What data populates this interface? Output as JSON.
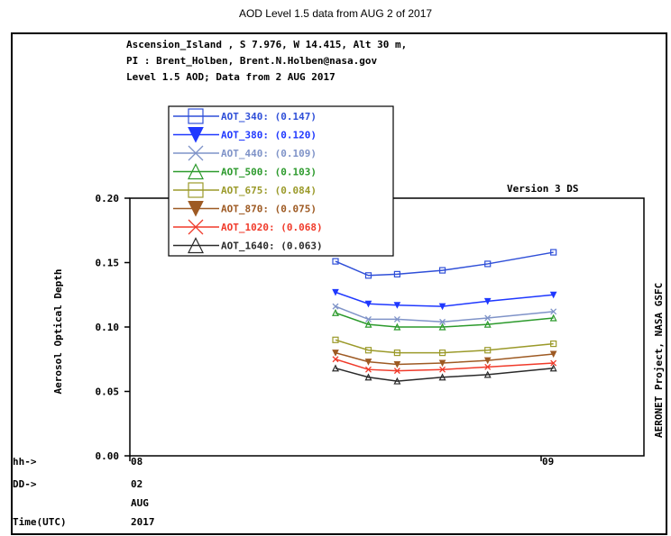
{
  "page_title": "AOD Level 1.5 data from AUG 2 of 2017",
  "header_lines": [
    "Ascension_Island , S  7.976, W  14.415, Alt 30 m,",
    "PI : Brent_Holben, Brent.N.Holben@nasa.gov",
    "Level 1.5 AOD; Data from 2 AUG 2017"
  ],
  "version_text": "Version 3 DS",
  "right_side_text": "AERONET Project, NASA GSFC",
  "time_axis_rows": [
    {
      "label": "hh->",
      "values": [
        "08",
        "09"
      ]
    },
    {
      "label": "DD->",
      "values": [
        "02"
      ]
    },
    {
      "label": "",
      "values": [
        "AUG"
      ]
    },
    {
      "label": "Time(UTC)",
      "values": [
        "2017"
      ]
    }
  ],
  "chart_data": {
    "type": "line",
    "title": "AOD Level 1.5 data from AUG 2 of 2017",
    "ylabel": "Aerosol Optical Depth",
    "xlabel": "Time(UTC)",
    "ylim": [
      0.0,
      0.2
    ],
    "xlim": [
      8.0,
      9.25
    ],
    "yticks": [
      "0.00",
      "0.05",
      "0.10",
      "0.15",
      "0.20"
    ],
    "yticks_values": [
      0.0,
      0.05,
      0.1,
      0.15,
      0.2
    ],
    "xticks": [
      "08",
      "09"
    ],
    "xticks_values": [
      8,
      9
    ],
    "grid": false,
    "legend_position": "top-left",
    "x": [
      8.5,
      8.58,
      8.65,
      8.76,
      8.87,
      9.03
    ],
    "series": [
      {
        "name": "AOT_340",
        "legend_label": "AOT_340: (0.147)",
        "color": "#2f4fd8",
        "marker": "square",
        "values": [
          0.151,
          0.14,
          0.141,
          0.144,
          0.149,
          0.158
        ]
      },
      {
        "name": "AOT_380",
        "legend_label": "AOT_380: (0.120)",
        "color": "#1f38ff",
        "marker": "triangle-down",
        "values": [
          0.127,
          0.118,
          0.117,
          0.116,
          0.12,
          0.125
        ]
      },
      {
        "name": "AOT_440",
        "legend_label": "AOT_440: (0.109)",
        "color": "#7f93c8",
        "marker": "x",
        "values": [
          0.116,
          0.106,
          0.106,
          0.104,
          0.107,
          0.112
        ]
      },
      {
        "name": "AOT_500",
        "legend_label": "AOT_500: (0.103)",
        "color": "#2c9a2c",
        "marker": "triangle-up",
        "values": [
          0.111,
          0.102,
          0.1,
          0.1,
          0.102,
          0.107
        ]
      },
      {
        "name": "AOT_675",
        "legend_label": "AOT_675: (0.084)",
        "color": "#9b9a2a",
        "marker": "square",
        "values": [
          0.09,
          0.082,
          0.08,
          0.08,
          0.082,
          0.087
        ]
      },
      {
        "name": "AOT_870",
        "legend_label": "AOT_870: (0.075)",
        "color": "#9e5a23",
        "marker": "triangle-down",
        "values": [
          0.08,
          0.073,
          0.071,
          0.072,
          0.074,
          0.079
        ]
      },
      {
        "name": "AOT_1020",
        "legend_label": "AOT_1020: (0.068)",
        "color": "#f03a2a",
        "marker": "x",
        "values": [
          0.075,
          0.067,
          0.066,
          0.067,
          0.069,
          0.072
        ]
      },
      {
        "name": "AOT_1640",
        "legend_label": "AOT_1640: (0.063)",
        "color": "#2a2a2a",
        "marker": "triangle-up",
        "values": [
          0.068,
          0.061,
          0.058,
          0.061,
          0.063,
          0.068
        ]
      }
    ]
  }
}
